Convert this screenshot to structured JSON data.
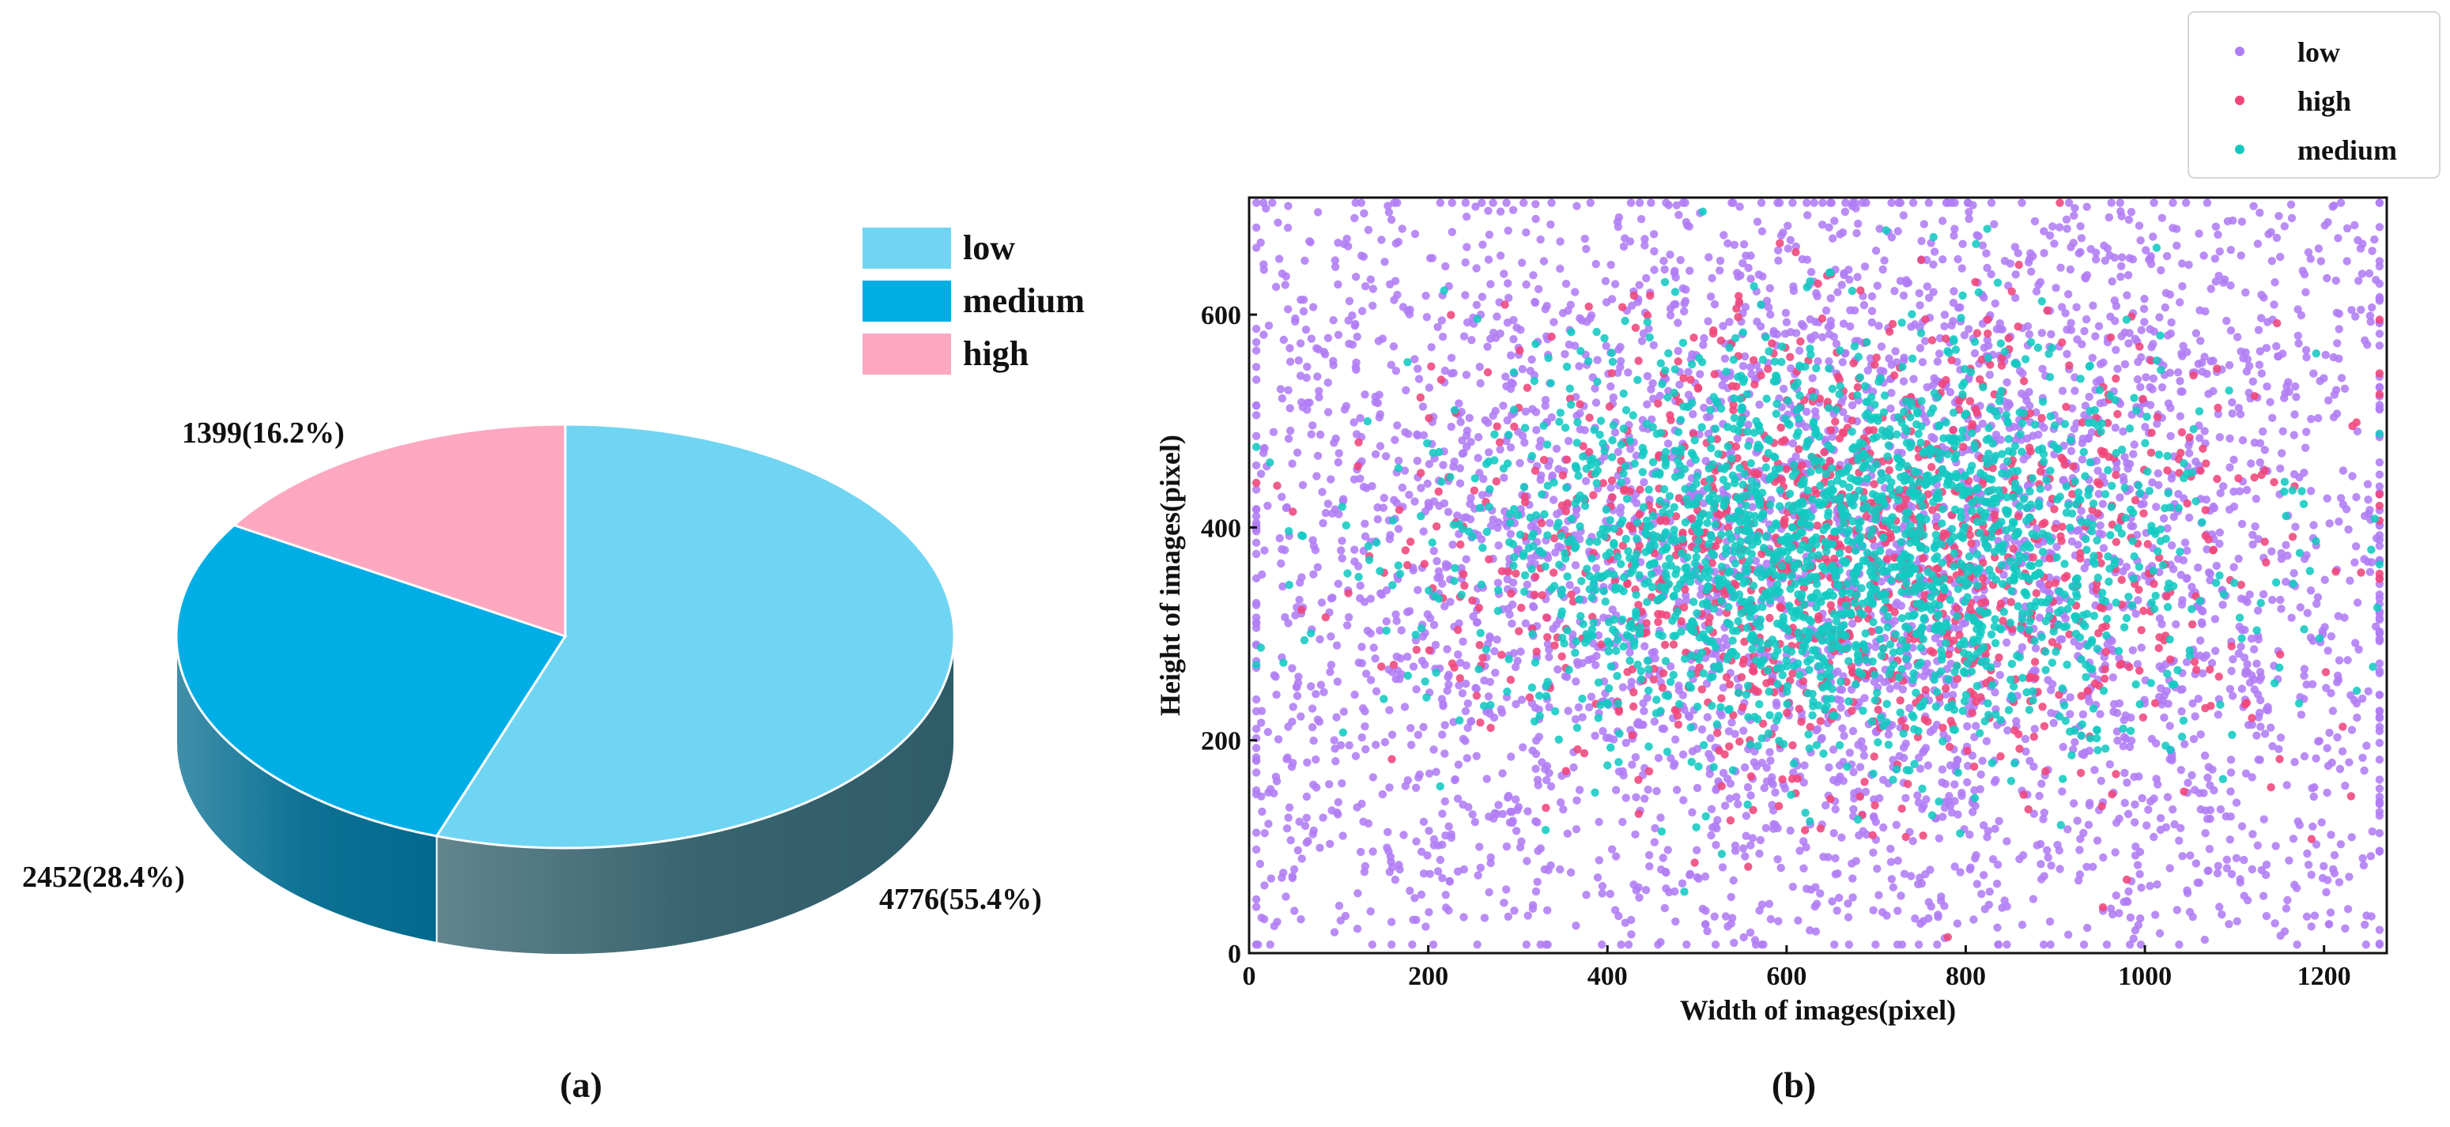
{
  "chart_data": [
    {
      "type": "pie",
      "panel_label": "(a)",
      "categories": [
        "low",
        "medium",
        "high"
      ],
      "values": [
        4776,
        2452,
        1399
      ],
      "percentages": [
        55.4,
        28.4,
        16.2
      ],
      "slice_labels": [
        "4776(55.4%)",
        "2452(28.4%)",
        "1399(16.2%)"
      ],
      "colors": [
        "#70D5F3",
        "#00AEE6",
        "#FDA7C1"
      ],
      "side_colors": [
        "#2E5C68",
        "#006A8E",
        "#B97F95"
      ],
      "legend": [
        {
          "label": "low",
          "color": "#70D5F3"
        },
        {
          "label": "medium",
          "color": "#00AEE6"
        },
        {
          "label": "high",
          "color": "#FDA7C1"
        }
      ],
      "style": "3d"
    },
    {
      "type": "scatter",
      "panel_label": "(b)",
      "xlabel": "Width of images(pixel)",
      "ylabel": "Height of images(pixel)",
      "xlim": [
        0,
        1270
      ],
      "ylim": [
        0,
        710
      ],
      "xticks": [
        0,
        200,
        400,
        600,
        800,
        1000,
        1200
      ],
      "yticks": [
        0,
        200,
        400,
        600
      ],
      "legend_position": "top-right",
      "series": [
        {
          "name": "low",
          "color": "#B07CF5",
          "count": 4776,
          "distribution": "wide",
          "center": [
            670,
            370
          ],
          "spread": [
            340,
            180
          ]
        },
        {
          "name": "high",
          "color": "#F0457A",
          "count": 1399,
          "distribution": "clustered",
          "center": [
            680,
            375
          ],
          "spread": [
            230,
            110
          ]
        },
        {
          "name": "medium",
          "color": "#12C9C1",
          "count": 2452,
          "distribution": "clustered",
          "center": [
            650,
            380
          ],
          "spread": [
            210,
            95
          ]
        }
      ]
    }
  ]
}
